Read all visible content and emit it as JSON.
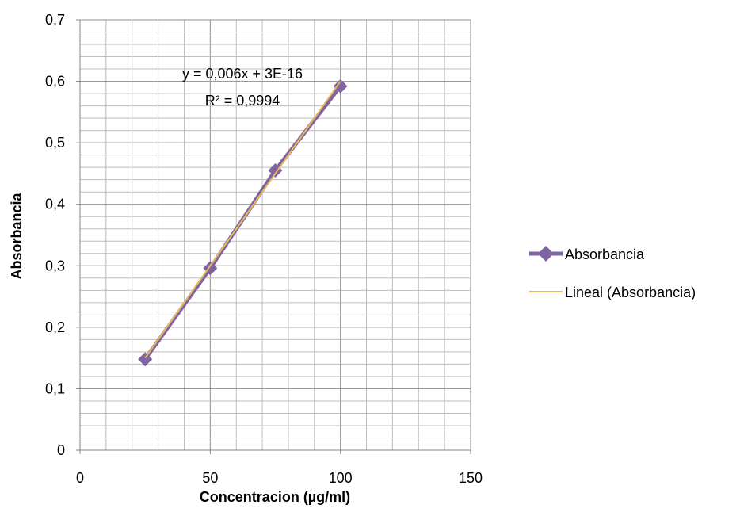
{
  "chart_data": {
    "type": "scatter",
    "xlabel": "Concentracion (µg/ml)",
    "ylabel": "Absorbancia",
    "xlim": [
      0,
      150
    ],
    "ylim": [
      0,
      0.7
    ],
    "x_ticks": [
      "0",
      "50",
      "100",
      "150"
    ],
    "y_ticks": [
      "0",
      "0,1",
      "0,2",
      "0,3",
      "0,4",
      "0,5",
      "0,6",
      "0,7"
    ],
    "x_minor_step": 10,
    "y_minor_step": 0.02,
    "grid": true,
    "legend_position": "right",
    "series": [
      {
        "name": "Absorbancia",
        "color": "#8064A2",
        "marker": "diamond",
        "x": [
          25,
          50,
          75,
          100
        ],
        "y": [
          0.148,
          0.296,
          0.455,
          0.592
        ]
      }
    ],
    "trendline": {
      "name": "Lineal (Absorbancia)",
      "color": "#E6B95A",
      "slope": 0.006,
      "intercept": 0,
      "x_range": [
        25,
        100
      ],
      "equation": "y = 0,006x + 3E-16",
      "r_squared": "R² = 0,9994"
    }
  }
}
